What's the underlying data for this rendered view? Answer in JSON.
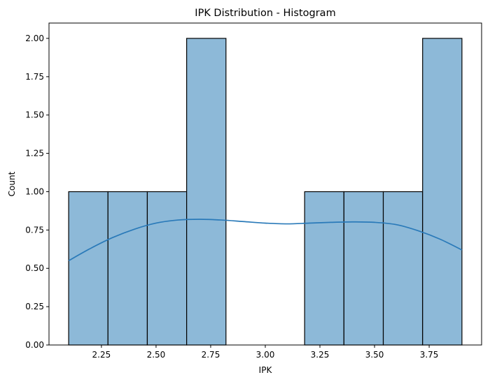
{
  "chart_data": {
    "type": "bar",
    "title": "IPK Distribution - Histogram",
    "xlabel": "IPK",
    "ylabel": "Count",
    "xlim": [
      2.01,
      3.99
    ],
    "ylim": [
      0,
      2.1
    ],
    "xticks": [
      "2.25",
      "2.50",
      "2.75",
      "3.00",
      "3.25",
      "3.50",
      "3.75"
    ],
    "yticks": [
      "0.00",
      "0.25",
      "0.50",
      "0.75",
      "1.00",
      "1.25",
      "1.50",
      "1.75",
      "2.00"
    ],
    "bins": [
      {
        "start": 2.1,
        "end": 2.28,
        "count": 1
      },
      {
        "start": 2.28,
        "end": 2.46,
        "count": 1
      },
      {
        "start": 2.46,
        "end": 2.64,
        "count": 1
      },
      {
        "start": 2.64,
        "end": 2.82,
        "count": 2
      },
      {
        "start": 2.82,
        "end": 3.0,
        "count": 0
      },
      {
        "start": 3.0,
        "end": 3.18,
        "count": 0
      },
      {
        "start": 3.18,
        "end": 3.36,
        "count": 1
      },
      {
        "start": 3.36,
        "end": 3.54,
        "count": 1
      },
      {
        "start": 3.54,
        "end": 3.72,
        "count": 1
      },
      {
        "start": 3.72,
        "end": 3.9,
        "count": 2
      }
    ],
    "kde": {
      "x": [
        2.1,
        2.2,
        2.3,
        2.4,
        2.5,
        2.6,
        2.7,
        2.8,
        2.9,
        3.0,
        3.1,
        3.2,
        3.3,
        3.4,
        3.5,
        3.6,
        3.7,
        3.8,
        3.9
      ],
      "y": [
        0.55,
        0.63,
        0.7,
        0.755,
        0.795,
        0.815,
        0.82,
        0.815,
        0.805,
        0.795,
        0.79,
        0.795,
        0.8,
        0.803,
        0.8,
        0.785,
        0.745,
        0.69,
        0.62
      ]
    },
    "colors": {
      "bar_fill": "#8db9d8",
      "bar_edge": "#000000",
      "kde_line": "#2a7ab9"
    },
    "grid": false,
    "legend": "none"
  }
}
